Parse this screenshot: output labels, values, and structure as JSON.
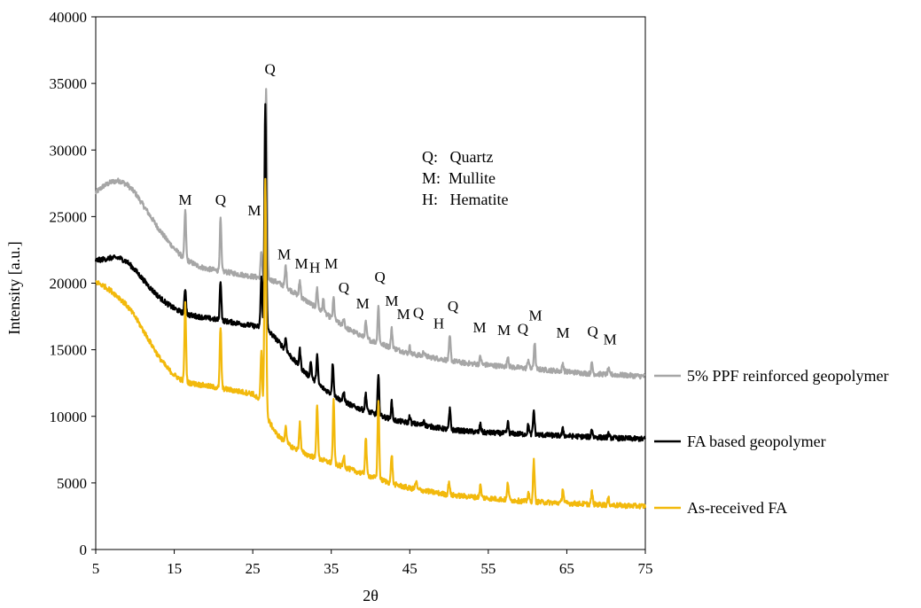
{
  "chart_data": {
    "type": "line",
    "xlabel": "2θ",
    "ylabel": "Intensity [a.u.]",
    "xlim": [
      5,
      75
    ],
    "ylim": [
      0,
      40000
    ],
    "x_ticks": [
      "5",
      "15",
      "25",
      "35",
      "45",
      "55",
      "65",
      "75"
    ],
    "y_ticks": [
      "0",
      "5000",
      "10000",
      "15000",
      "20000",
      "25000",
      "30000",
      "35000",
      "40000"
    ],
    "grid": false,
    "phase_key": [
      "Q:   Quartz",
      "M:  Mullite",
      "H:   Hematite"
    ],
    "series": [
      {
        "name": "5% PPF reinforced geopolymer",
        "color": "#A6A6A6",
        "baseline": [
          [
            5,
            26800
          ],
          [
            6,
            27300
          ],
          [
            7,
            27600
          ],
          [
            8,
            27700
          ],
          [
            9,
            27400
          ],
          [
            10,
            26800
          ],
          [
            11,
            25900
          ],
          [
            12,
            25000
          ],
          [
            13,
            24100
          ],
          [
            14,
            23300
          ],
          [
            15,
            22600
          ],
          [
            16,
            22000
          ],
          [
            17,
            21600
          ],
          [
            18,
            21300
          ],
          [
            19,
            21100
          ],
          [
            20,
            21000
          ],
          [
            21,
            20900
          ],
          [
            22,
            20800
          ],
          [
            23,
            20700
          ],
          [
            24,
            20600
          ],
          [
            25,
            20500
          ],
          [
            26,
            20400
          ],
          [
            27,
            20300
          ],
          [
            28,
            20100
          ],
          [
            29,
            19800
          ],
          [
            30,
            19400
          ],
          [
            31,
            19000
          ],
          [
            32,
            18600
          ],
          [
            33,
            18200
          ],
          [
            34,
            17800
          ],
          [
            35,
            17400
          ],
          [
            36,
            17000
          ],
          [
            37,
            16600
          ],
          [
            38,
            16300
          ],
          [
            39,
            16000
          ],
          [
            40,
            15700
          ],
          [
            41,
            15500
          ],
          [
            42,
            15300
          ],
          [
            43,
            15100
          ],
          [
            44,
            14900
          ],
          [
            45,
            14700
          ],
          [
            46,
            14600
          ],
          [
            47,
            14500
          ],
          [
            48,
            14400
          ],
          [
            49,
            14300
          ],
          [
            50,
            14200
          ],
          [
            52,
            14000
          ],
          [
            54,
            13900
          ],
          [
            56,
            13800
          ],
          [
            58,
            13700
          ],
          [
            60,
            13600
          ],
          [
            62,
            13500
          ],
          [
            64,
            13400
          ],
          [
            66,
            13300
          ],
          [
            68,
            13200
          ],
          [
            70,
            13150
          ],
          [
            72,
            13100
          ],
          [
            75,
            13000
          ]
        ],
        "peaks": [
          [
            16.4,
            3600
          ],
          [
            20.9,
            3900
          ],
          [
            26.1,
            2000
          ],
          [
            26.7,
            14300
          ],
          [
            29.2,
            1600
          ],
          [
            31.0,
            1200
          ],
          [
            33.2,
            1500
          ],
          [
            34.0,
            1000
          ],
          [
            35.3,
            1600
          ],
          [
            36.6,
            600
          ],
          [
            39.4,
            1200
          ],
          [
            41.0,
            2800
          ],
          [
            42.7,
            1400
          ],
          [
            45.0,
            500
          ],
          [
            46.8,
            400
          ],
          [
            50.1,
            1800
          ],
          [
            54.0,
            600
          ],
          [
            57.5,
            800
          ],
          [
            60.1,
            700
          ],
          [
            60.9,
            2000
          ],
          [
            64.5,
            600
          ],
          [
            68.2,
            800
          ],
          [
            70.3,
            400
          ]
        ]
      },
      {
        "name": "FA based geopolymer",
        "color": "#000000",
        "baseline": [
          [
            5,
            21700
          ],
          [
            6,
            21800
          ],
          [
            7,
            21900
          ],
          [
            8,
            21900
          ],
          [
            9,
            21600
          ],
          [
            10,
            21000
          ],
          [
            11,
            20300
          ],
          [
            12,
            19600
          ],
          [
            13,
            19000
          ],
          [
            14,
            18500
          ],
          [
            15,
            18100
          ],
          [
            16,
            17800
          ],
          [
            17,
            17600
          ],
          [
            18,
            17500
          ],
          [
            19,
            17400
          ],
          [
            20,
            17300
          ],
          [
            21,
            17200
          ],
          [
            22,
            17100
          ],
          [
            23,
            17000
          ],
          [
            24,
            16900
          ],
          [
            25,
            16800
          ],
          [
            26,
            16700
          ],
          [
            27,
            16400
          ],
          [
            28,
            15800
          ],
          [
            29,
            15100
          ],
          [
            30,
            14400
          ],
          [
            31,
            13700
          ],
          [
            32,
            13100
          ],
          [
            33,
            12600
          ],
          [
            34,
            12100
          ],
          [
            35,
            11700
          ],
          [
            36,
            11300
          ],
          [
            37,
            11000
          ],
          [
            38,
            10700
          ],
          [
            39,
            10500
          ],
          [
            40,
            10300
          ],
          [
            41,
            10100
          ],
          [
            42,
            9900
          ],
          [
            43,
            9700
          ],
          [
            44,
            9600
          ],
          [
            45,
            9500
          ],
          [
            46,
            9400
          ],
          [
            47,
            9300
          ],
          [
            48,
            9200
          ],
          [
            49,
            9100
          ],
          [
            50,
            9000
          ],
          [
            52,
            8900
          ],
          [
            54,
            8800
          ],
          [
            56,
            8750
          ],
          [
            58,
            8700
          ],
          [
            60,
            8650
          ],
          [
            62,
            8600
          ],
          [
            64,
            8550
          ],
          [
            66,
            8500
          ],
          [
            68,
            8450
          ],
          [
            70,
            8400
          ],
          [
            72,
            8350
          ],
          [
            75,
            8300
          ]
        ],
        "peaks": [
          [
            16.4,
            1900
          ],
          [
            20.9,
            3000
          ],
          [
            26.1,
            3800
          ],
          [
            26.6,
            16900
          ],
          [
            29.2,
            900
          ],
          [
            31.0,
            1300
          ],
          [
            32.4,
            1200
          ],
          [
            33.2,
            2100
          ],
          [
            35.2,
            2400
          ],
          [
            36.6,
            700
          ],
          [
            39.4,
            1300
          ],
          [
            41.0,
            2900
          ],
          [
            42.7,
            1300
          ],
          [
            45.0,
            500
          ],
          [
            46.8,
            400
          ],
          [
            50.1,
            1500
          ],
          [
            54.0,
            600
          ],
          [
            57.5,
            800
          ],
          [
            60.1,
            700
          ],
          [
            60.8,
            1800
          ],
          [
            64.5,
            500
          ],
          [
            68.2,
            600
          ],
          [
            70.3,
            300
          ]
        ]
      },
      {
        "name": "As-received FA",
        "color": "#F2B90C",
        "baseline": [
          [
            5,
            20100
          ],
          [
            6,
            19800
          ],
          [
            7,
            19400
          ],
          [
            8,
            18900
          ],
          [
            9,
            18300
          ],
          [
            10,
            17500
          ],
          [
            11,
            16500
          ],
          [
            12,
            15500
          ],
          [
            13,
            14500
          ],
          [
            14,
            13700
          ],
          [
            15,
            13100
          ],
          [
            16,
            12700
          ],
          [
            17,
            12500
          ],
          [
            18,
            12400
          ],
          [
            19,
            12300
          ],
          [
            20,
            12200
          ],
          [
            21,
            12100
          ],
          [
            22,
            12000
          ],
          [
            23,
            11900
          ],
          [
            24,
            11800
          ],
          [
            25,
            11700
          ],
          [
            26,
            11100
          ],
          [
            27,
            9700
          ],
          [
            28,
            8700
          ],
          [
            29,
            8100
          ],
          [
            30,
            7700
          ],
          [
            31,
            7400
          ],
          [
            32,
            7100
          ],
          [
            33,
            6900
          ],
          [
            34,
            6700
          ],
          [
            35,
            6500
          ],
          [
            36,
            6300
          ],
          [
            37,
            6100
          ],
          [
            38,
            5900
          ],
          [
            39,
            5700
          ],
          [
            40,
            5500
          ],
          [
            41,
            5300
          ],
          [
            42,
            5100
          ],
          [
            43,
            4900
          ],
          [
            44,
            4750
          ],
          [
            45,
            4600
          ],
          [
            46,
            4500
          ],
          [
            47,
            4400
          ],
          [
            48,
            4300
          ],
          [
            49,
            4200
          ],
          [
            50,
            4100
          ],
          [
            52,
            4000
          ],
          [
            54,
            3900
          ],
          [
            56,
            3800
          ],
          [
            58,
            3700
          ],
          [
            60,
            3600
          ],
          [
            62,
            3550
          ],
          [
            64,
            3500
          ],
          [
            66,
            3450
          ],
          [
            68,
            3400
          ],
          [
            70,
            3350
          ],
          [
            72,
            3300
          ],
          [
            75,
            3250
          ]
        ],
        "peaks": [
          [
            16.4,
            5800
          ],
          [
            20.9,
            4600
          ],
          [
            26.1,
            4000
          ],
          [
            26.6,
            17400
          ],
          [
            29.2,
            1300
          ],
          [
            31.0,
            2100
          ],
          [
            33.2,
            4100
          ],
          [
            35.3,
            4700
          ],
          [
            36.6,
            900
          ],
          [
            39.4,
            2800
          ],
          [
            41.0,
            6000
          ],
          [
            42.7,
            2200
          ],
          [
            45.8,
            600
          ],
          [
            50.0,
            1000
          ],
          [
            54.0,
            900
          ],
          [
            57.5,
            1300
          ],
          [
            60.1,
            700
          ],
          [
            60.8,
            3100
          ],
          [
            64.5,
            1100
          ],
          [
            68.2,
            900
          ],
          [
            70.3,
            500
          ]
        ]
      }
    ],
    "annotations": [
      {
        "text": "M",
        "x": 16.4,
        "y": 25900
      },
      {
        "text": "Q",
        "x": 20.9,
        "y": 25900
      },
      {
        "text": "M",
        "x": 25.2,
        "y": 25100
      },
      {
        "text": "Q",
        "x": 27.2,
        "y": 35700
      },
      {
        "text": "M",
        "x": 29.0,
        "y": 21800
      },
      {
        "text": "M",
        "x": 31.2,
        "y": 21100
      },
      {
        "text": "H",
        "x": 32.9,
        "y": 20800
      },
      {
        "text": "M",
        "x": 35.0,
        "y": 21100
      },
      {
        "text": "Q",
        "x": 36.6,
        "y": 19300
      },
      {
        "text": "M",
        "x": 39.0,
        "y": 18100
      },
      {
        "text": "Q",
        "x": 41.2,
        "y": 20100
      },
      {
        "text": "M",
        "x": 42.7,
        "y": 18300
      },
      {
        "text": "M",
        "x": 44.2,
        "y": 17300
      },
      {
        "text": "Q",
        "x": 46.1,
        "y": 17400
      },
      {
        "text": "H",
        "x": 48.7,
        "y": 16600
      },
      {
        "text": "Q",
        "x": 50.5,
        "y": 17900
      },
      {
        "text": "M",
        "x": 53.9,
        "y": 16300
      },
      {
        "text": "M",
        "x": 57.0,
        "y": 16100
      },
      {
        "text": "Q",
        "x": 59.4,
        "y": 16200
      },
      {
        "text": "M",
        "x": 61.0,
        "y": 17200
      },
      {
        "text": "M",
        "x": 64.5,
        "y": 15900
      },
      {
        "text": "Q",
        "x": 68.3,
        "y": 16000
      },
      {
        "text": "M",
        "x": 70.5,
        "y": 15400
      }
    ]
  }
}
